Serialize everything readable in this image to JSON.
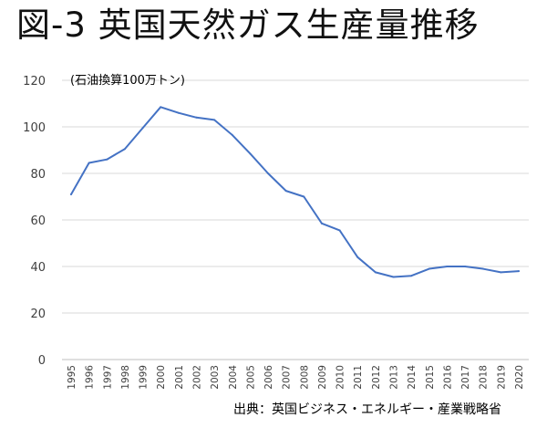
{
  "title": "図-3 英国天然ガス生産量推移",
  "source": "出典：英国ビジネス・エネルギー・産業戦略省",
  "chart_data": {
    "type": "line",
    "title": "図-3 英国天然ガス生産量推移",
    "unit_label": "(石油換算100万トン)",
    "xlabel": "",
    "ylabel": "",
    "ylim": [
      0,
      120
    ],
    "yticks": [
      0,
      20,
      40,
      60,
      80,
      100,
      120
    ],
    "grid": true,
    "legend": "none",
    "line_color": "#4472c4",
    "grid_color": "#d9d9d9",
    "x": [
      "1995",
      "1996",
      "1997",
      "1998",
      "1999",
      "2000",
      "2001",
      "2002",
      "2003",
      "2004",
      "2005",
      "2006",
      "2007",
      "2008",
      "2009",
      "2010",
      "2011",
      "2012",
      "2013",
      "2014",
      "2015",
      "2016",
      "2017",
      "2018",
      "2019",
      "2020"
    ],
    "series": [
      {
        "name": "",
        "values": [
          71,
          84.5,
          86,
          90.5,
          99.5,
          108.5,
          106,
          104,
          103,
          96.5,
          88.5,
          80,
          72.5,
          70,
          58.5,
          55.5,
          44,
          37.5,
          35.5,
          36,
          39,
          40,
          40,
          39,
          37.5,
          38
        ]
      }
    ]
  }
}
